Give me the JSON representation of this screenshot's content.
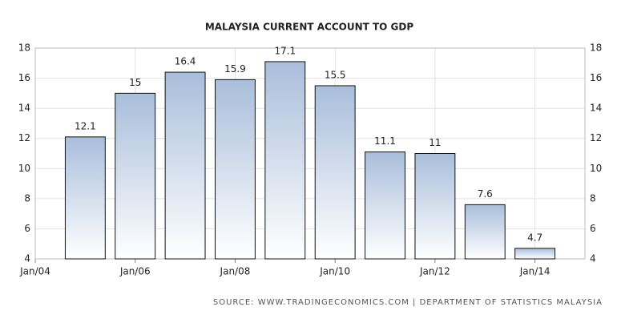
{
  "chart_data": {
    "type": "bar",
    "title": "MALAYSIA CURRENT ACCOUNT TO GDP",
    "x": [
      2005,
      2006,
      2007,
      2008,
      2009,
      2010,
      2011,
      2012,
      2013,
      2014
    ],
    "values": [
      12.1,
      15,
      16.4,
      15.9,
      17.1,
      15.5,
      11.1,
      11,
      7.6,
      4.7
    ],
    "xlim": [
      2004,
      2015
    ],
    "xticks": [
      {
        "value": 2004,
        "label": "Jan/04"
      },
      {
        "value": 2006,
        "label": "Jan/06"
      },
      {
        "value": 2008,
        "label": "Jan/08"
      },
      {
        "value": 2010,
        "label": "Jan/10"
      },
      {
        "value": 2012,
        "label": "Jan/12"
      },
      {
        "value": 2014,
        "label": "Jan/14"
      }
    ],
    "ylim": [
      4,
      18
    ],
    "yticks": [
      4,
      6,
      8,
      10,
      12,
      14,
      16,
      18
    ],
    "grid": true,
    "color": "#a9bedb",
    "source": "SOURCE: WWW.TRADINGECONOMICS.COM | DEPARTMENT OF STATISTICS MALAYSIA"
  }
}
